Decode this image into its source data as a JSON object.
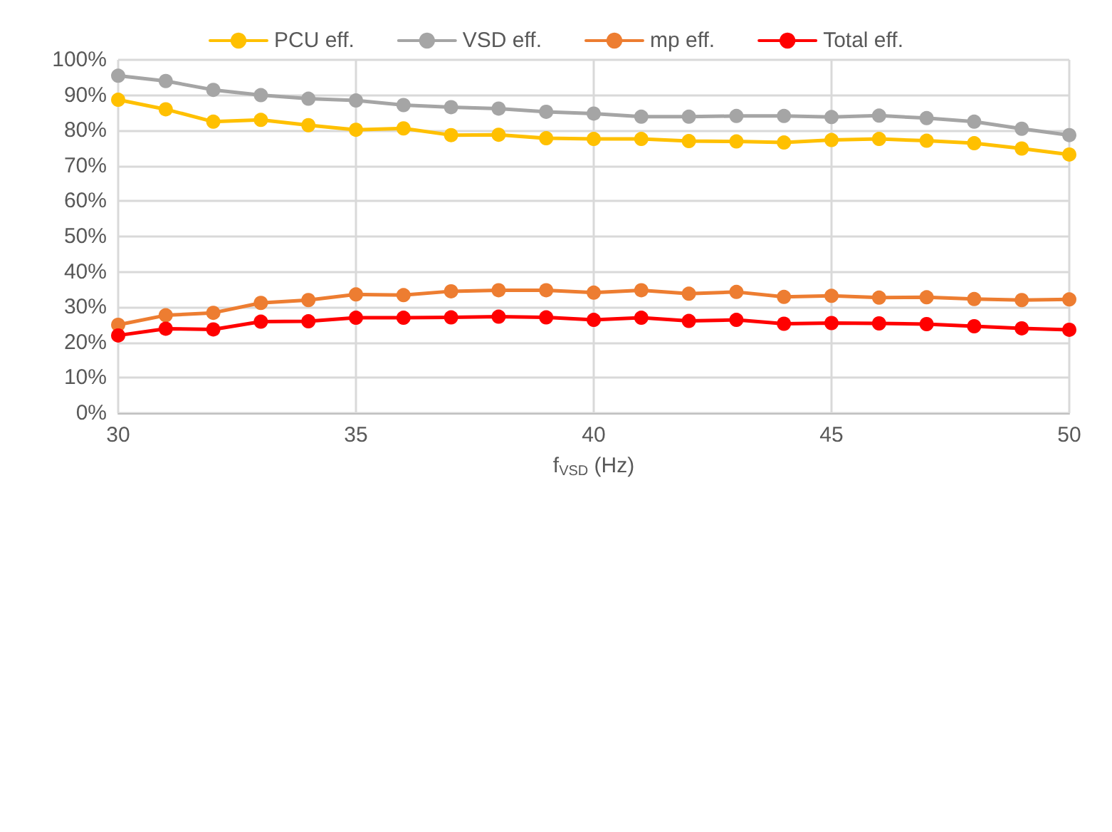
{
  "chart_data": {
    "type": "line",
    "xlabel": "f$_{VSD}$ (Hz)",
    "x": [
      30,
      31,
      32,
      33,
      34,
      35,
      36,
      37,
      38,
      39,
      40,
      41,
      42,
      43,
      44,
      45,
      46,
      47,
      48,
      49,
      50
    ],
    "xlim": [
      30,
      50
    ],
    "xticks": [
      30,
      35,
      40,
      45,
      50
    ],
    "ylim": [
      0,
      100
    ],
    "yticks": [
      {
        "value": 0,
        "label": "0%"
      },
      {
        "value": 10,
        "label": "10%"
      },
      {
        "value": 20,
        "label": "20%"
      },
      {
        "value": 30,
        "label": "30%"
      },
      {
        "value": 40,
        "label": "40%"
      },
      {
        "value": 50,
        "label": "50%"
      },
      {
        "value": 60,
        "label": "60%"
      },
      {
        "value": 70,
        "label": "70%"
      },
      {
        "value": 80,
        "label": "80%"
      },
      {
        "value": 90,
        "label": "90%"
      },
      {
        "value": 100,
        "label": "100%"
      }
    ],
    "grid": true,
    "legend": "top",
    "marker": "circle",
    "line_style": "solid",
    "series": [
      {
        "name": "PCU eff.",
        "color": "#ffc000",
        "values": [
          88.7,
          86,
          82.5,
          83,
          81.5,
          80.2,
          80.6,
          78.7,
          78.8,
          77.8,
          77.6,
          77.6,
          77,
          76.9,
          76.6,
          77.3,
          77.6,
          77.1,
          76.4,
          74.9,
          73.2
        ]
      },
      {
        "name": "VSD eff.",
        "color": "#a5a5a5",
        "values": [
          95.5,
          94,
          91.5,
          90,
          89,
          88.5,
          87.2,
          86.6,
          86.2,
          85.3,
          84.8,
          83.9,
          83.9,
          84.1,
          84.1,
          83.8,
          84.2,
          83.5,
          82.5,
          80.5,
          78.7
        ]
      },
      {
        "name": "mp eff.",
        "color": "#ed7d31",
        "values": [
          25,
          27.7,
          28.4,
          31.2,
          32,
          33.6,
          33.4,
          34.5,
          34.8,
          34.8,
          34.1,
          34.8,
          33.8,
          34.3,
          32.9,
          33.2,
          32.7,
          32.8,
          32.3,
          32,
          32.2
        ]
      },
      {
        "name": "Total eff.",
        "color": "#ff0000",
        "values": [
          22,
          23.9,
          23.7,
          25.9,
          26,
          27,
          27,
          27.1,
          27.3,
          27.1,
          26.4,
          27,
          26.1,
          26.4,
          25.3,
          25.5,
          25.4,
          25.2,
          24.6,
          24,
          23.6
        ]
      }
    ]
  }
}
